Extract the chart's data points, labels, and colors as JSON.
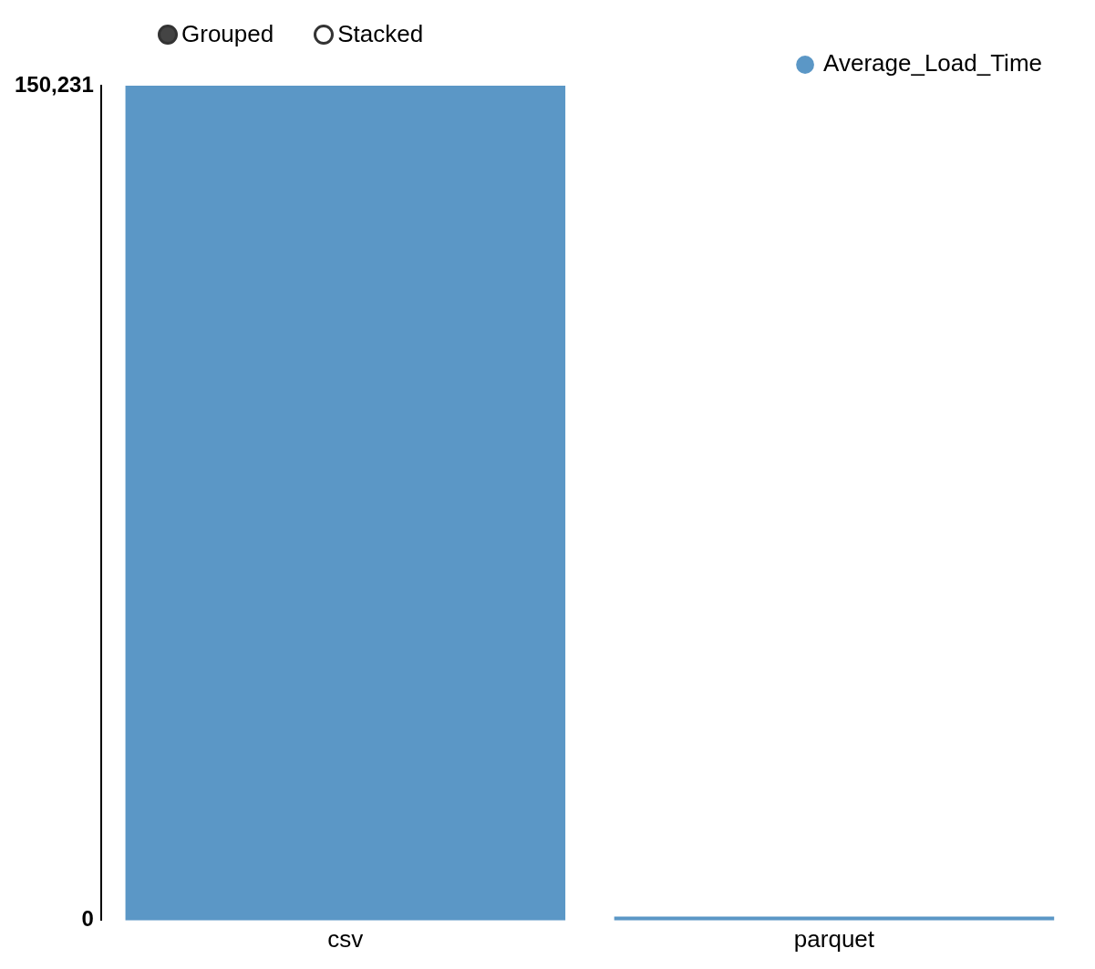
{
  "chart_data": {
    "type": "bar",
    "categories": [
      "csv",
      "parquet"
    ],
    "series": [
      {
        "name": "Average_Load_Time",
        "color": "#5b97c6",
        "values": [
          150231,
          700
        ]
      }
    ],
    "ylim": [
      0,
      150231
    ],
    "yticks": [
      0,
      {
        "value": 150231,
        "label": "150,231"
      }
    ],
    "grid": false,
    "legend": "top right",
    "annotations": [
      "Grouped",
      "Stacked"
    ]
  }
}
